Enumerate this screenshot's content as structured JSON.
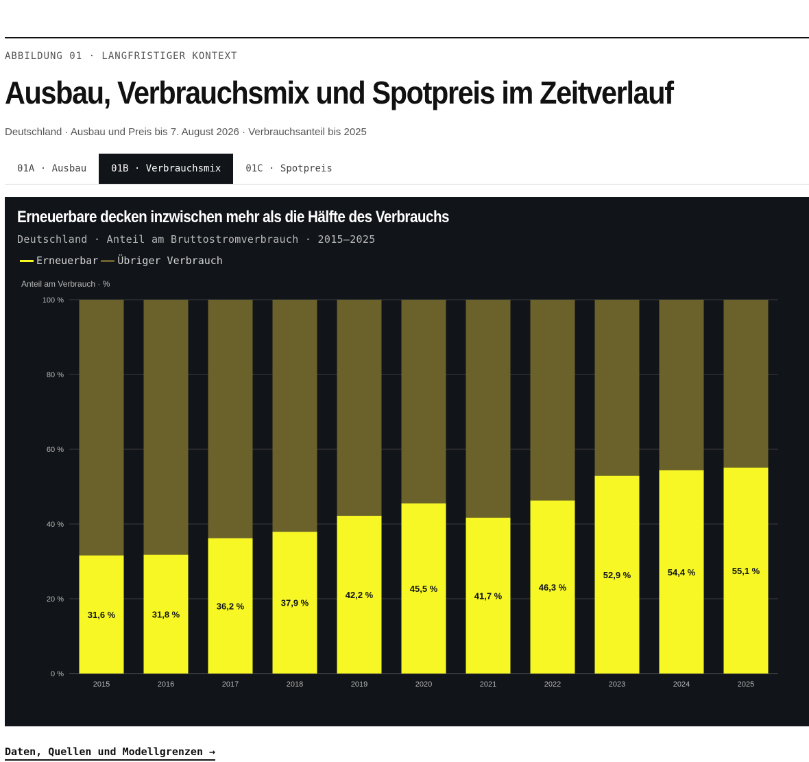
{
  "header": {
    "kicker": "ABBILDUNG 01 · LANGFRISTIGER KONTEXT",
    "title": "Ausbau, Verbrauchsmix und Spotpreis im Zeitverlauf",
    "subtitle": "Deutschland · Ausbau und Preis bis 7. August 2026 · Verbrauchsanteil bis 2025"
  },
  "tabs": [
    {
      "label": "01A · Ausbau",
      "active": false
    },
    {
      "label": "01B · Verbrauchsmix",
      "active": true
    },
    {
      "label": "01C · Spotpreis",
      "active": false
    }
  ],
  "footer": {
    "link_label": "Daten, Quellen und Modellgrenzen →"
  },
  "colors": {
    "panel_bg": "#111418",
    "renewable": "#f7f726",
    "other": "#6b612b",
    "grid": "#3a3d40"
  },
  "chart_data": {
    "type": "bar",
    "stacked": true,
    "title": "Erneuerbare decken inzwischen mehr als die Hälfte des Verbrauchs",
    "subtitle": "Deutschland · Anteil am Bruttostromverbrauch · 2015–2025",
    "ylabel": "Anteil am Verbrauch · %",
    "xlabel": "",
    "ylim": [
      0,
      100
    ],
    "yticks": [
      0,
      20,
      40,
      60,
      80,
      100
    ],
    "ytick_labels": [
      "0 %",
      "20 %",
      "40 %",
      "60 %",
      "80 %",
      "100 %"
    ],
    "grid": true,
    "legend_position": "top-left",
    "categories": [
      "2015",
      "2016",
      "2017",
      "2018",
      "2019",
      "2020",
      "2021",
      "2022",
      "2023",
      "2024",
      "2025"
    ],
    "series": [
      {
        "name": "Erneuerbar",
        "color": "#f7f726",
        "values": [
          31.6,
          31.8,
          36.2,
          37.9,
          42.2,
          45.5,
          41.7,
          46.3,
          52.9,
          54.4,
          55.1
        ],
        "labels": [
          "31,6 %",
          "31,8 %",
          "36,2 %",
          "37,9 %",
          "42,2 %",
          "45,5 %",
          "41,7 %",
          "46,3 %",
          "52,9 %",
          "54,4 %",
          "55,1 %"
        ]
      },
      {
        "name": "Übriger Verbrauch",
        "color": "#6b612b",
        "values": [
          68.4,
          68.2,
          63.8,
          62.1,
          57.8,
          54.5,
          58.3,
          53.7,
          47.1,
          45.6,
          44.9
        ]
      }
    ]
  }
}
